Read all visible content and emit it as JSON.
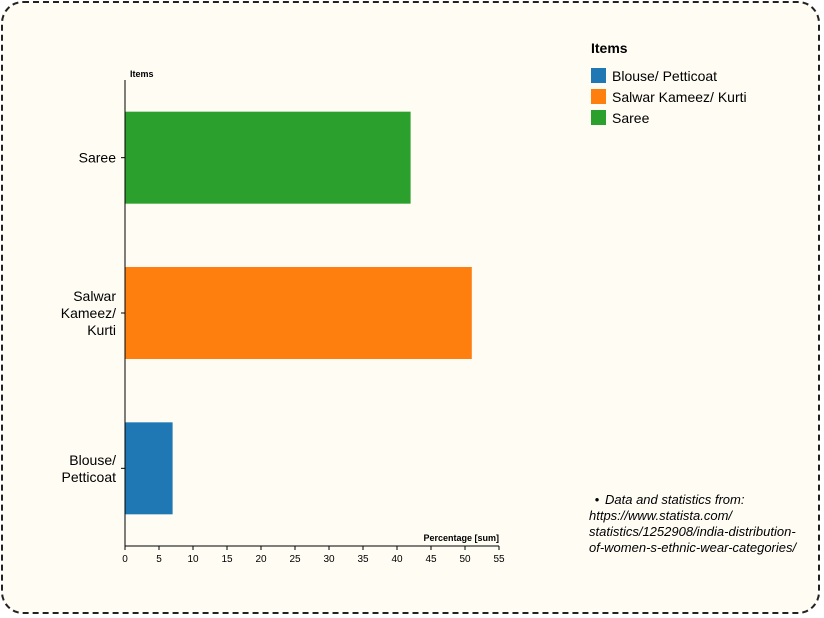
{
  "chart_data": {
    "type": "bar",
    "orientation": "horizontal",
    "categories": [
      "Blouse/ Petticoat",
      "Salwar Kameez/ Kurti",
      "Saree"
    ],
    "category_lines": [
      [
        "Blouse/",
        "Petticoat"
      ],
      [
        "Salwar",
        "Kameez/",
        "Kurti"
      ],
      [
        "Saree"
      ]
    ],
    "values": [
      7,
      51,
      42
    ],
    "colors": [
      "#1f77b4",
      "#ff7f0e",
      "#2ca02c"
    ],
    "xlabel": "Percentage [sum]",
    "ylabel": "Items",
    "xlim": [
      0,
      55
    ],
    "xticks": [
      0,
      5,
      10,
      15,
      20,
      25,
      30,
      35,
      40,
      45,
      50,
      55
    ],
    "grid": false,
    "legend": {
      "title": "Items",
      "position": "right",
      "entries": [
        "Blouse/ Petticoat",
        "Salwar Kameez/ Kurti",
        "Saree"
      ]
    }
  },
  "note": "Data and statistics from: https://www.statista.com/ statistics/1252908/india-distribution-of-women-s-ethnic-wear-categories/"
}
